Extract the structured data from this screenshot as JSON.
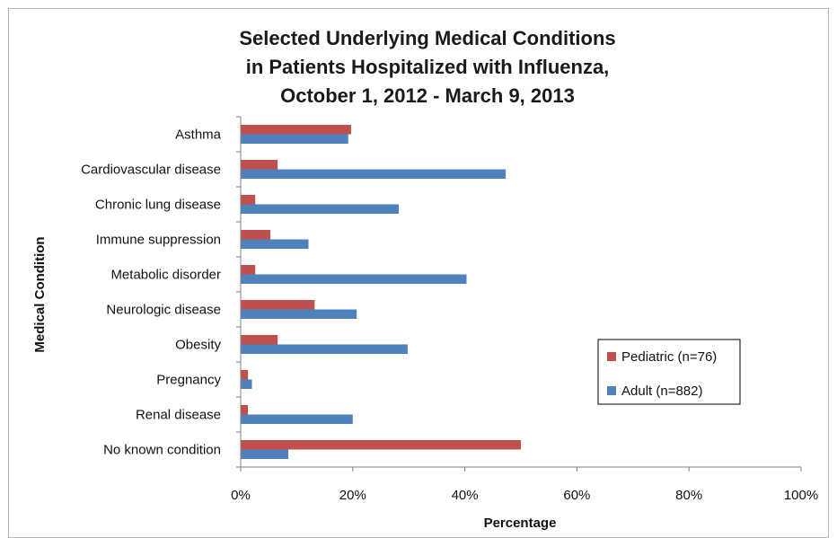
{
  "chart_data": {
    "type": "bar",
    "orientation": "horizontal",
    "title_lines": [
      "Selected Underlying Medical Conditions",
      "in Patients Hospitalized with Influenza,",
      "October 1, 2012 - March 9, 2013"
    ],
    "xlabel": "Percentage",
    "ylabel": "Medical Condition",
    "categories": [
      "Asthma",
      "Cardiovascular disease",
      "Chronic lung disease",
      "Immune suppression",
      "Metabolic disorder",
      "Neurologic disease",
      "Obesity",
      "Pregnancy",
      "Renal disease",
      "No known condition"
    ],
    "series": [
      {
        "name": "Pediatric (n=76)",
        "color": "#c0504d",
        "values": [
          19.7,
          6.6,
          2.6,
          5.3,
          2.6,
          13.2,
          6.6,
          1.3,
          1.3,
          50.0
        ]
      },
      {
        "name": "Adult (n=882)",
        "color": "#4f81bd",
        "values": [
          19.2,
          47.3,
          28.2,
          12.1,
          40.3,
          20.7,
          29.8,
          2.0,
          20.0,
          8.5
        ]
      }
    ],
    "xlim": [
      0,
      100
    ],
    "xticks": [
      "0%",
      "20%",
      "40%",
      "60%",
      "80%",
      "100%"
    ],
    "xtick_values": [
      0,
      20,
      40,
      60,
      80,
      100
    ],
    "grid": false,
    "legend_position": "right"
  }
}
